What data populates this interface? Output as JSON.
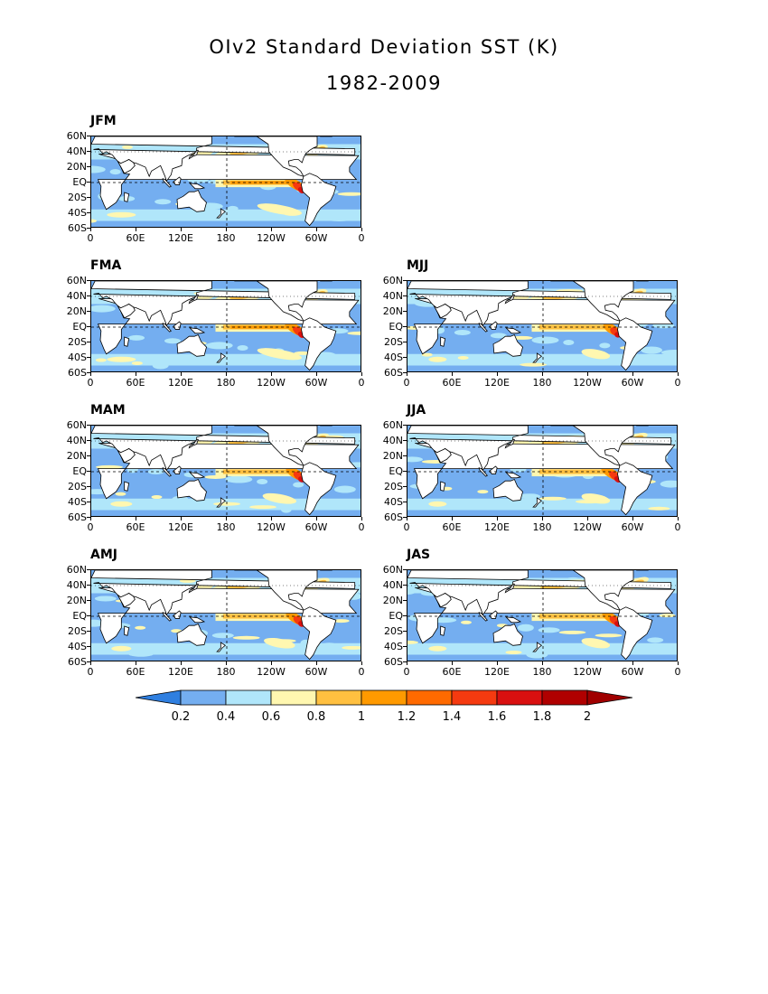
{
  "title": "OIv2 Standard Deviation SST (K)",
  "subtitle": "1982-2009",
  "lat_labels": [
    "60N",
    "40N",
    "20N",
    "EQ",
    "20S",
    "40S",
    "60S"
  ],
  "lon_labels": [
    "0",
    "60E",
    "120E",
    "180",
    "120W",
    "60W",
    "0"
  ],
  "panels": [
    {
      "label": "JFM"
    },
    {
      "label": "FMA"
    },
    {
      "label": "MJJ"
    },
    {
      "label": "MAM"
    },
    {
      "label": "JJA"
    },
    {
      "label": "AMJ"
    },
    {
      "label": "JAS"
    }
  ],
  "colorbar": {
    "labels": [
      "0.2",
      "0.4",
      "0.6",
      "0.8",
      "1",
      "1.2",
      "1.4",
      "1.6",
      "1.8",
      "2"
    ],
    "colors": [
      "#2f7fe0",
      "#74aef0",
      "#b0e6fa",
      "#fff7b0",
      "#ffc040",
      "#ff9a00",
      "#ff6a00",
      "#f53a10",
      "#d91010",
      "#b00000",
      "#a00000"
    ],
    "land_color": "#ffffff"
  }
}
